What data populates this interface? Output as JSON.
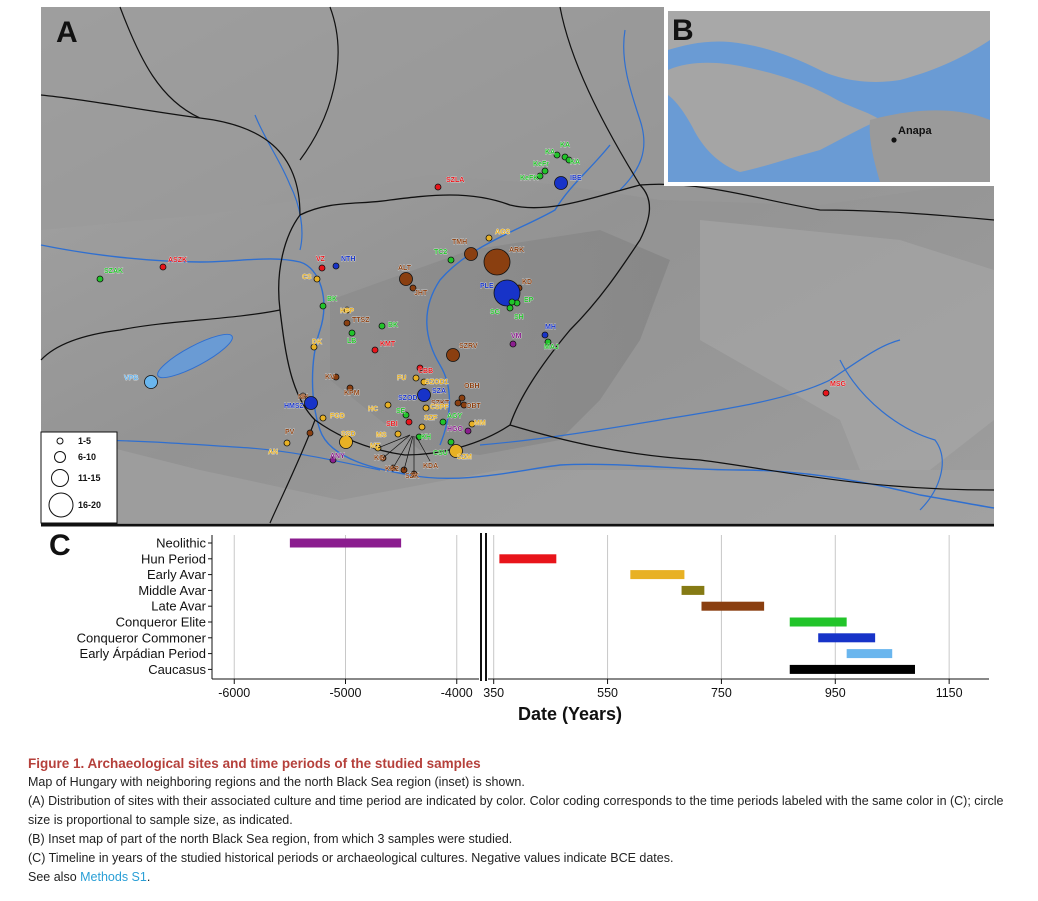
{
  "panels": {
    "a": "A",
    "b": "B",
    "c": "C"
  },
  "colors": {
    "neolithic": "#8b1d8f",
    "hun": "#e8141a",
    "early_avar": "#e8b124",
    "middle_avar": "#857a14",
    "late_avar": "#8a3f10",
    "conqueror_elite": "#22c42a",
    "conqueror_commoner": "#1733c8",
    "early_arpadian": "#6ab6ee",
    "caucasus": "#000000",
    "water": "#6a9bd4",
    "river": "#2f6fd0",
    "border": "#111111"
  },
  "map": {
    "sites": [
      {
        "label": "SZLA",
        "period": "hun",
        "size": "1-5"
      },
      {
        "label": "ASZK",
        "period": "hun",
        "size": "1-5"
      },
      {
        "label": "SZAK",
        "period": "conqueror_elite",
        "size": "1-5"
      },
      {
        "label": "VPB",
        "period": "early_arpadian",
        "size": "6-10"
      },
      {
        "label": "KA",
        "period": "conqueror_elite",
        "size": "1-5"
      },
      {
        "label": "KA",
        "period": "conqueror_elite",
        "size": "1-5"
      },
      {
        "label": "KA",
        "period": "conqueror_elite",
        "size": "1-5"
      },
      {
        "label": "KeFr",
        "period": "conqueror_elite",
        "size": "1-5"
      },
      {
        "label": "KeFK",
        "period": "conqueror_elite",
        "size": "1-5"
      },
      {
        "label": "IBE",
        "period": "conqueror_commoner",
        "size": "6-10"
      },
      {
        "label": "AGS",
        "period": "early_avar",
        "size": "1-5"
      },
      {
        "label": "TMH",
        "period": "late_avar",
        "size": "6-10"
      },
      {
        "label": "TC2",
        "period": "conqueror_elite",
        "size": "1-5"
      },
      {
        "label": "ARK",
        "period": "late_avar",
        "size": "16-20"
      },
      {
        "label": "VZ",
        "period": "hun",
        "size": "1-5"
      },
      {
        "label": "NTH",
        "period": "conqueror_commoner",
        "size": "1-5"
      },
      {
        "label": "CS",
        "period": "early_avar",
        "size": "1-5"
      },
      {
        "label": "ALT",
        "period": "late_avar",
        "size": "6-10"
      },
      {
        "label": "JHT",
        "period": "late_avar",
        "size": "1-5"
      },
      {
        "label": "KD",
        "period": "late_avar",
        "size": "1-5"
      },
      {
        "label": "PLE",
        "period": "conqueror_commoner",
        "size": "16-20"
      },
      {
        "label": "EP",
        "period": "conqueror_elite",
        "size": "1-5"
      },
      {
        "label": "SG",
        "period": "conqueror_elite",
        "size": "1-5"
      },
      {
        "label": "SH",
        "period": "conqueror_elite",
        "size": "1-5"
      },
      {
        "label": "BK",
        "period": "conqueror_elite",
        "size": "1-5"
      },
      {
        "label": "KFP",
        "period": "early_avar",
        "size": "1-5"
      },
      {
        "label": "TTSZ",
        "period": "late_avar",
        "size": "1-5"
      },
      {
        "label": "BK",
        "period": "conqueror_elite",
        "size": "1-5"
      },
      {
        "label": "LB",
        "period": "conqueror_elite",
        "size": "1-5"
      },
      {
        "label": "DK",
        "period": "early_avar",
        "size": "1-5"
      },
      {
        "label": "KMT",
        "period": "hun",
        "size": "1-5"
      },
      {
        "label": "MH",
        "period": "conqueror_commoner",
        "size": "1-5"
      },
      {
        "label": "MAJ",
        "period": "conqueror_elite",
        "size": "1-5"
      },
      {
        "label": "VM",
        "period": "neolithic",
        "size": "1-5"
      },
      {
        "label": "SZRV",
        "period": "late_avar",
        "size": "6-10"
      },
      {
        "label": "CBB",
        "period": "hun",
        "size": "1-5"
      },
      {
        "label": "FU",
        "period": "early_avar",
        "size": "1-5"
      },
      {
        "label": "SZOD1",
        "period": "early_avar",
        "size": "1-5"
      },
      {
        "label": "SZA",
        "period": "conqueror_commoner",
        "size": "1-5"
      },
      {
        "label": "KV",
        "period": "late_avar",
        "size": "1-5"
      },
      {
        "label": "KPM",
        "period": "late_avar",
        "size": "1-5"
      },
      {
        "label": "SZOD",
        "period": "conqueror_commoner",
        "size": "6-10"
      },
      {
        "label": "OBH",
        "period": "late_avar",
        "size": "1-5"
      },
      {
        "label": "SZKT",
        "period": "late_avar",
        "size": "1-5"
      },
      {
        "label": "OBT",
        "period": "late_avar",
        "size": "1-5"
      },
      {
        "label": "MSG",
        "period": "hun",
        "size": "1-5"
      },
      {
        "label": "NH",
        "period": "late_avar",
        "size": "1-5"
      },
      {
        "label": "HMSZ",
        "period": "conqueror_commoner",
        "size": "6-10"
      },
      {
        "label": "FGD",
        "period": "early_avar",
        "size": "1-5"
      },
      {
        "label": "HC",
        "period": "early_avar",
        "size": "1-5"
      },
      {
        "label": "CSPF",
        "period": "early_avar",
        "size": "1-5"
      },
      {
        "label": "SE",
        "period": "conqueror_elite",
        "size": "1-5"
      },
      {
        "label": "SBI",
        "period": "hun",
        "size": "1-5"
      },
      {
        "label": "SZF",
        "period": "early_avar",
        "size": "1-5"
      },
      {
        "label": "AGY",
        "period": "conqueror_elite",
        "size": "1-5"
      },
      {
        "label": "HGO",
        "period": "neolithic",
        "size": "1-5"
      },
      {
        "label": "MM",
        "period": "early_avar",
        "size": "1-5"
      },
      {
        "label": "PV",
        "period": "late_avar",
        "size": "1-5"
      },
      {
        "label": "SSD",
        "period": "early_avar",
        "size": "6-10"
      },
      {
        "label": "MS",
        "period": "early_avar",
        "size": "1-5"
      },
      {
        "label": "KH",
        "period": "conqueror_elite",
        "size": "1-5"
      },
      {
        "label": "CSU",
        "period": "conqueror_elite",
        "size": "1-5"
      },
      {
        "label": "SZM",
        "period": "early_avar",
        "size": "6-10"
      },
      {
        "label": "AN",
        "period": "early_avar",
        "size": "1-5"
      },
      {
        "label": "ANY",
        "period": "neolithic",
        "size": "1-5"
      },
      {
        "label": "MT",
        "period": "early_avar",
        "size": "1-5"
      },
      {
        "label": "KG",
        "period": "late_avar",
        "size": "1-5"
      },
      {
        "label": "KK2",
        "period": "late_avar",
        "size": "1-5"
      },
      {
        "label": "KDA",
        "period": "late_avar",
        "size": "1-5"
      },
      {
        "label": "SZK",
        "period": "late_avar",
        "size": "1-5"
      },
      {
        "label": "SED",
        "period": "conqueror_elite",
        "size": "1-5"
      }
    ],
    "legend": [
      "1-5",
      "6-10",
      "11-15",
      "16-20"
    ]
  },
  "inset": {
    "place_label": "Anapa"
  },
  "chart_data": {
    "type": "bar",
    "subtype": "horizontal-range (gantt) with broken x-axis",
    "xlabel": "Date (Years)",
    "ylabel": "",
    "title": "",
    "categories": [
      "Neolithic",
      "Hun Period",
      "Early Avar",
      "Middle Avar",
      "Late Avar",
      "Conqueror Elite",
      "Conqueror Commoner",
      "Early Árpádian Period",
      "Caucasus"
    ],
    "ranges": [
      {
        "name": "Neolithic",
        "start": -5500,
        "end": -4500,
        "color": "#8b1d8f"
      },
      {
        "name": "Hun Period",
        "start": 360,
        "end": 460,
        "color": "#e8141a"
      },
      {
        "name": "Early Avar",
        "start": 590,
        "end": 685,
        "color": "#e8b124"
      },
      {
        "name": "Middle Avar",
        "start": 680,
        "end": 720,
        "color": "#857a14"
      },
      {
        "name": "Late Avar",
        "start": 715,
        "end": 825,
        "color": "#8a3f10"
      },
      {
        "name": "Conqueror Elite",
        "start": 870,
        "end": 970,
        "color": "#22c42a"
      },
      {
        "name": "Conqueror Commoner",
        "start": 920,
        "end": 1020,
        "color": "#1733c8"
      },
      {
        "name": "Early Árpádian Period",
        "start": 970,
        "end": 1050,
        "color": "#6ab6ee"
      },
      {
        "name": "Caucasus",
        "start": 870,
        "end": 1090,
        "color": "#000000"
      }
    ],
    "xaxis_segments": [
      {
        "xlim": [
          -6200,
          -3800
        ],
        "ticks": [
          "-6000",
          "-5000",
          "-4000"
        ],
        "tick_values": [
          -6000,
          -5000,
          -4000
        ]
      },
      {
        "xlim": [
          340,
          1220
        ],
        "ticks": [
          "350",
          "550",
          "750",
          "950",
          "1150"
        ],
        "tick_values": [
          350,
          550,
          750,
          950,
          1150
        ]
      }
    ],
    "grid": "vertical",
    "legend": "none"
  },
  "caption": {
    "title": "Figure 1. Archaeological sites and time periods of the studied samples",
    "lines": [
      "Map of Hungary with neighboring regions and the north Black Sea region (inset) is shown.",
      "(A) Distribution of sites with their associated culture and time period are indicated by color. Color coding corresponds to the time periods labeled with the same color in (C); circle size is proportional to sample size, as indicated.",
      "(B) Inset map of part of the north Black Sea region, from which 3 samples were studied.",
      "(C) Timeline in years of the studied historical periods or archaeological cultures. Negative values indicate BCE dates."
    ],
    "see_also_prefix": "See also ",
    "see_also_link": "Methods S1",
    "see_also_suffix": "."
  }
}
